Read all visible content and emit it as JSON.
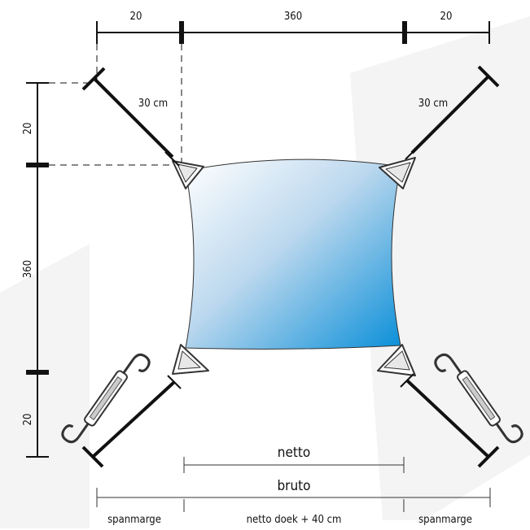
{
  "top_dims": [
    "20",
    "360",
    "20"
  ],
  "left_dims": [
    "20",
    "360",
    "20"
  ],
  "corner_labels": [
    "30 cm",
    "30 cm"
  ],
  "bottom": {
    "netto": "netto",
    "bruto": "bruto",
    "left_margin": "spanmarge",
    "middle": "netto doek + 40 cm",
    "right_margin": "spanmarge"
  },
  "colors": {
    "sail_light": "#ffffff",
    "sail_dark": "#0a8fd8",
    "line": "#111111",
    "watermark": "#f3f3f3"
  },
  "icons": [
    "turnbuckle-icon",
    "turnbuckle-icon"
  ]
}
